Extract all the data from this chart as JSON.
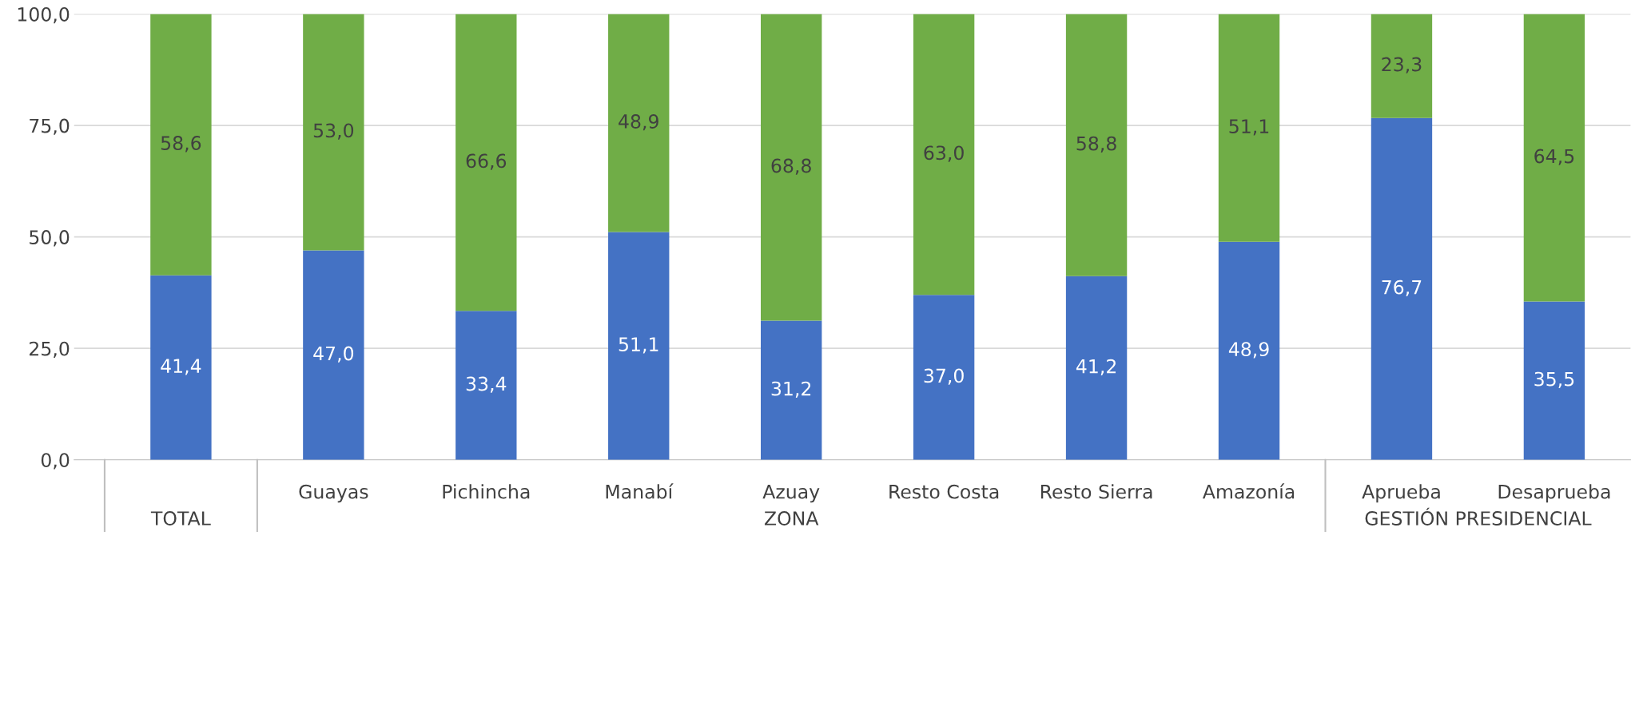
{
  "chart_data": {
    "type": "bar",
    "stacked": true,
    "categories": [
      null,
      "Guayas",
      "Pichincha",
      "Manabí",
      "Azuay",
      "Resto Costa",
      "Resto Sierra",
      "Amazonía",
      "Aprueba",
      "Desaprueba"
    ],
    "series": [
      {
        "color": "#4472c4",
        "values": [
          41.4,
          47.0,
          33.4,
          51.1,
          31.2,
          37.0,
          41.2,
          48.9,
          76.7,
          35.5
        ],
        "value_labels": [
          "41,4",
          "47,0",
          "33,4",
          "51,1",
          "31,2",
          "37,0",
          "41,2",
          "48,9",
          "76,7",
          "35,5"
        ]
      },
      {
        "color": "#70ad47",
        "values": [
          58.6,
          53.0,
          66.6,
          48.9,
          68.8,
          63.0,
          58.8,
          51.1,
          23.3,
          64.5
        ],
        "value_labels": [
          "58,6",
          "53,0",
          "66,6",
          "48,9",
          "68,8",
          "63,0",
          "58,8",
          "51,1",
          "23,3",
          "64,5"
        ]
      }
    ],
    "ylim": [
      0,
      100
    ],
    "yticks": [
      {
        "value": 0,
        "label": "0,0"
      },
      {
        "value": 25,
        "label": "25,0"
      },
      {
        "value": 50,
        "label": "50,0"
      },
      {
        "value": 75,
        "label": "75,0"
      },
      {
        "value": 100,
        "label": "100,0"
      }
    ],
    "grid": "y",
    "legend": false,
    "annotations": [
      "TOTAL",
      "ZONA",
      "GESTIÓN PRESIDENCIAL"
    ]
  }
}
